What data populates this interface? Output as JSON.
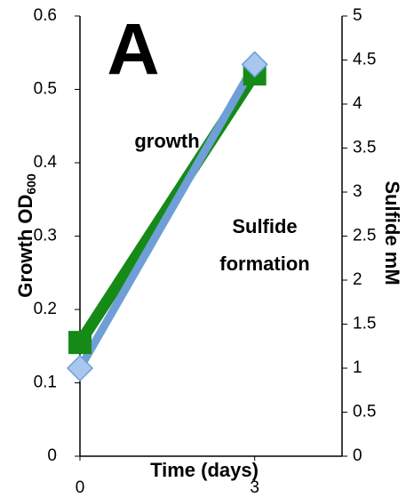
{
  "chart_data": {
    "type": "line",
    "title": "A",
    "xlabel": "Time (days)",
    "ylabel": "Growth OD",
    "ylabel_subscript": "600",
    "y2label": "Sulfide mM",
    "x": [
      0,
      3
    ],
    "xlim": [
      0,
      4.5
    ],
    "xticks": [
      0,
      3
    ],
    "ylim": [
      0,
      0.6
    ],
    "yticks": [
      0,
      0.1,
      0.2,
      0.3,
      0.4,
      0.5,
      0.6
    ],
    "y2lim": [
      0,
      5
    ],
    "y2ticks": [
      0,
      0.5,
      1,
      1.5,
      2,
      2.5,
      3,
      3.5,
      4,
      4.5,
      5
    ],
    "annotations": [
      "growth",
      "Sulfide",
      "formation"
    ],
    "series": [
      {
        "name": "growth",
        "color": "#168a16",
        "marker": "square",
        "values": [
          0.155,
          0.521
        ]
      },
      {
        "name": "Sulfide formation",
        "color": "#6f9fd6",
        "marker": "diamond",
        "axis": "y2",
        "values": [
          1.0,
          4.45
        ]
      }
    ]
  }
}
